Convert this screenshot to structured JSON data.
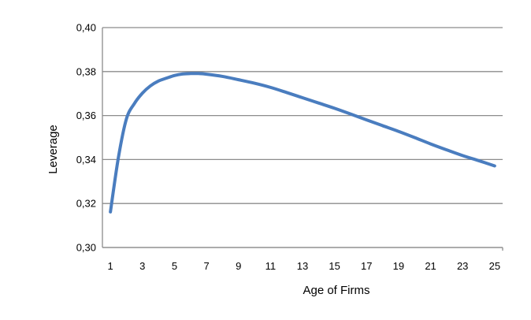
{
  "chart_data": {
    "type": "line",
    "title": "",
    "xlabel": "Age of Firms",
    "ylabel": "Leverage",
    "x_ticks": [
      "1",
      "3",
      "5",
      "7",
      "9",
      "11",
      "13",
      "15",
      "17",
      "19",
      "21",
      "23",
      "25"
    ],
    "y_ticks": [
      "0,30",
      "0,32",
      "0,34",
      "0,36",
      "0,38",
      "0,40"
    ],
    "xlim": [
      0.5,
      25.5
    ],
    "ylim": [
      0.3,
      0.4
    ],
    "grid": "horizontal",
    "legend": "none",
    "series": [
      {
        "color": "#4A7DBF",
        "x": [
          1,
          1.5,
          2,
          2.5,
          3,
          3.5,
          4,
          4.5,
          5,
          5.5,
          6,
          6.5,
          7,
          8,
          9,
          10,
          11,
          12,
          13,
          14,
          15,
          16,
          17,
          18,
          19,
          20,
          21,
          22,
          23,
          24,
          25
        ],
        "y": [
          0.3162,
          0.341,
          0.3585,
          0.3655,
          0.3702,
          0.3735,
          0.3757,
          0.377,
          0.3782,
          0.3789,
          0.3791,
          0.3791,
          0.3788,
          0.3778,
          0.3763,
          0.3747,
          0.3728,
          0.3705,
          0.3681,
          0.3657,
          0.3633,
          0.3607,
          0.358,
          0.3554,
          0.3528,
          0.35,
          0.3471,
          0.3444,
          0.3418,
          0.3395,
          0.3371
        ]
      }
    ]
  }
}
